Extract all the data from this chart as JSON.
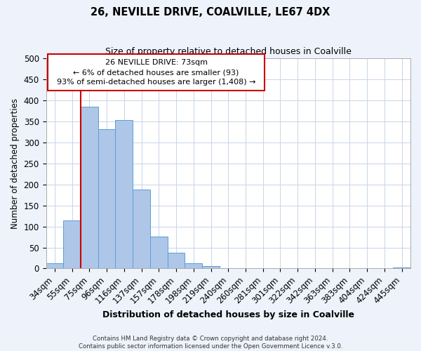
{
  "title": "26, NEVILLE DRIVE, COALVILLE, LE67 4DX",
  "subtitle": "Size of property relative to detached houses in Coalville",
  "xlabel": "Distribution of detached houses by size in Coalville",
  "ylabel": "Number of detached properties",
  "bar_labels": [
    "34sqm",
    "55sqm",
    "75sqm",
    "96sqm",
    "116sqm",
    "137sqm",
    "157sqm",
    "178sqm",
    "198sqm",
    "219sqm",
    "240sqm",
    "260sqm",
    "281sqm",
    "301sqm",
    "322sqm",
    "342sqm",
    "363sqm",
    "383sqm",
    "404sqm",
    "424sqm",
    "445sqm"
  ],
  "bar_values": [
    12,
    115,
    385,
    331,
    353,
    188,
    76,
    38,
    12,
    6,
    0,
    0,
    0,
    0,
    0,
    0,
    0,
    0,
    0,
    1,
    2
  ],
  "bar_color": "#aec6e8",
  "bar_edge_color": "#5a9fd4",
  "vline_x": 1.5,
  "vline_color": "#cc0000",
  "ylim": [
    0,
    500
  ],
  "annotation_box_text": "26 NEVILLE DRIVE: 73sqm\n← 6% of detached houses are smaller (93)\n93% of semi-detached houses are larger (1,408) →",
  "footer_line1": "Contains HM Land Registry data © Crown copyright and database right 2024.",
  "footer_line2": "Contains public sector information licensed under the Open Government Licence v.3.0.",
  "bg_color": "#eef2fb",
  "plot_bg_color": "#ffffff",
  "grid_color": "#c8d4e8"
}
